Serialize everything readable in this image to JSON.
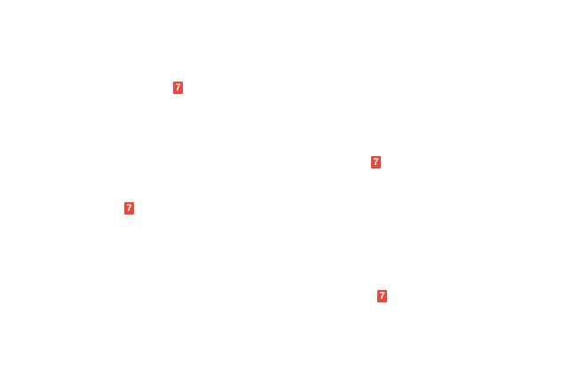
{
  "page": {
    "background_color": "#ffffff"
  },
  "marker_style": {
    "background_color": "#e8493c",
    "text_color": "#ffffff"
  },
  "markers": [
    {
      "label": "7"
    },
    {
      "label": "7"
    },
    {
      "label": "7"
    },
    {
      "label": "7"
    }
  ]
}
